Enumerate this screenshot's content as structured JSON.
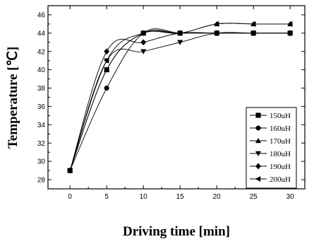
{
  "chart_data": {
    "type": "line",
    "title": "",
    "xlabel": "Driving time [min]",
    "ylabel": "Temperature [℃]",
    "xlim": [
      -3,
      32
    ],
    "ylim": [
      27,
      47
    ],
    "xticks": [
      0,
      5,
      10,
      15,
      20,
      25,
      30
    ],
    "yticks": [
      28,
      30,
      32,
      34,
      36,
      38,
      40,
      42,
      44,
      46
    ],
    "grid": false,
    "legend_position": "right",
    "x": [
      0,
      5,
      10,
      15,
      20,
      25,
      30
    ],
    "series": [
      {
        "name": "150uH",
        "marker": "square",
        "values": [
          29,
          40,
          44,
          44,
          44,
          44,
          44
        ]
      },
      {
        "name": "160uH",
        "marker": "circle",
        "values": [
          29,
          38,
          44,
          44,
          44,
          44,
          44
        ]
      },
      {
        "name": "170uH",
        "marker": "triangle-up",
        "values": [
          29,
          40,
          44,
          44,
          45,
          45,
          45
        ]
      },
      {
        "name": "180uH",
        "marker": "triangle-down",
        "values": [
          29,
          41,
          42,
          43,
          44,
          44,
          44
        ]
      },
      {
        "name": "190uH",
        "marker": "diamond",
        "values": [
          29,
          42,
          43,
          44,
          44,
          44,
          44
        ]
      },
      {
        "name": "200uH",
        "marker": "triangle-left",
        "values": [
          29,
          41,
          44,
          44,
          45,
          45,
          45
        ]
      }
    ]
  }
}
